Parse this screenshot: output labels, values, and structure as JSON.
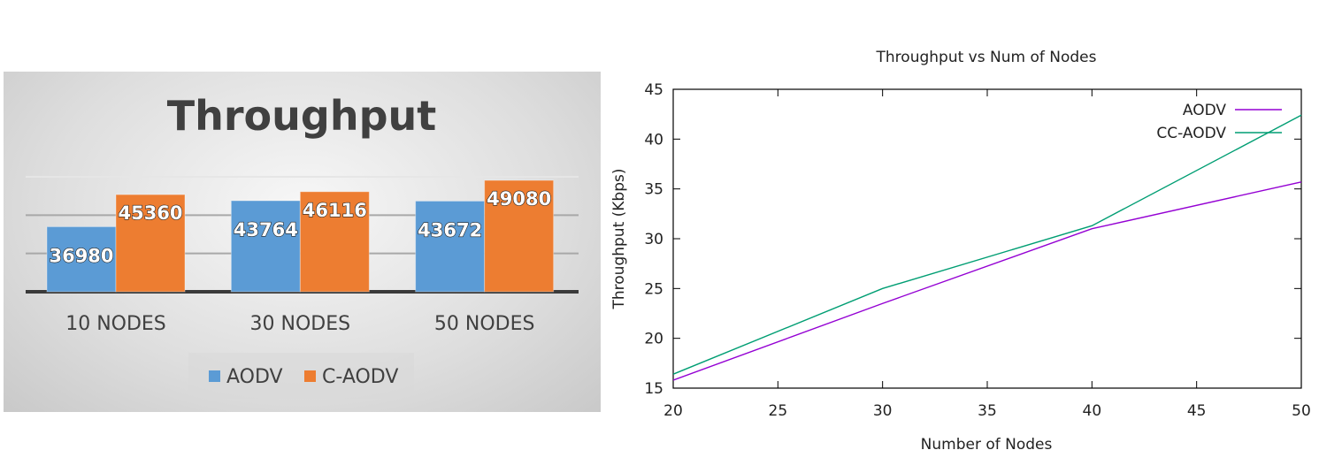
{
  "chart_data": [
    {
      "type": "bar",
      "title": "Throughput",
      "categories": [
        "10 NODES",
        "30 NODES",
        "50 NODES"
      ],
      "series": [
        {
          "name": "AODV",
          "values": [
            36980,
            43764,
            43672
          ],
          "color": "#5b9bd5"
        },
        {
          "name": "C-AODV",
          "values": [
            45360,
            46116,
            49080
          ],
          "color": "#ed7d31"
        }
      ],
      "data_labels": true,
      "grid": true,
      "legend": "bottom"
    },
    {
      "type": "line",
      "title": "Throughput vs Num of Nodes",
      "xlabel": "Number of Nodes",
      "ylabel": "Throughput (Kbps)",
      "xlim": [
        20,
        50
      ],
      "ylim": [
        15,
        45
      ],
      "xticks": [
        20,
        25,
        30,
        35,
        40,
        45,
        50
      ],
      "yticks": [
        15,
        20,
        25,
        30,
        35,
        40,
        45
      ],
      "series": [
        {
          "name": "AODV",
          "color": "#9400d3",
          "x": [
            20,
            30,
            40,
            50
          ],
          "y": [
            15.8,
            23.5,
            31.0,
            35.7
          ]
        },
        {
          "name": "CC-AODV",
          "color": "#009e73",
          "x": [
            20,
            30,
            40,
            50
          ],
          "y": [
            16.4,
            25.0,
            31.3,
            42.4
          ]
        }
      ],
      "legend": "top-right",
      "grid": false
    }
  ]
}
